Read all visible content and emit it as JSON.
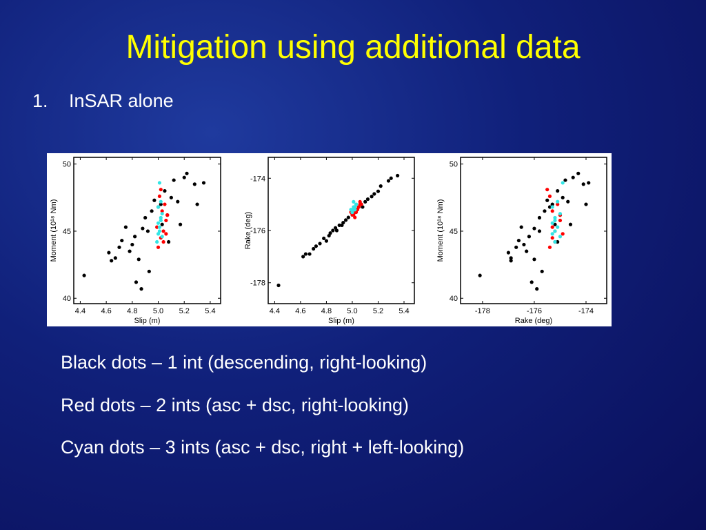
{
  "slide": {
    "title": "Mitigation using additional data",
    "list": [
      {
        "number": "1.",
        "text": "InSAR alone"
      }
    ],
    "notes": [
      "Black dots – 1 int (descending, right-looking)",
      "Red dots – 2 ints (asc + dsc, right-looking)",
      "Cyan dots – 3 ints (asc + dsc, right + left-looking)"
    ]
  },
  "chart_data": [
    {
      "type": "scatter",
      "xlabel": "Slip (m)",
      "ylabel": "Moment (10¹⁸ Nm)",
      "xlim": [
        4.35,
        5.48
      ],
      "ylim": [
        39.6,
        50.5
      ],
      "xticks": [
        4.4,
        4.6,
        4.8,
        {
          "value": 5,
          "label": "5.0"
        },
        5.2,
        5.4
      ],
      "yticks": [
        40,
        45,
        50
      ],
      "series": [
        {
          "color": "#000000",
          "x": [
            4.43,
            4.62,
            4.64,
            4.67,
            4.7,
            4.72,
            4.75,
            4.78,
            4.8,
            4.82,
            4.85,
            4.88,
            4.9,
            4.92,
            4.95,
            4.97,
            5.0,
            5.02,
            5.05,
            5.07,
            5.1,
            5.12,
            5.15,
            5.17,
            5.2,
            5.22,
            5.28,
            5.3,
            5.35,
            4.83,
            4.87,
            4.93,
            5.03,
            5.08
          ],
          "values": [
            41.7,
            43.4,
            42.8,
            43.0,
            43.8,
            44.3,
            45.3,
            43.5,
            44.0,
            44.6,
            42.9,
            45.2,
            46.0,
            45.0,
            46.5,
            47.3,
            46.8,
            47.0,
            48.0,
            46.2,
            47.5,
            48.8,
            47.2,
            45.5,
            49.0,
            49.3,
            48.5,
            47.0,
            48.6,
            41.2,
            40.7,
            42.0,
            45.5,
            44.2
          ]
        },
        {
          "color": "#ff0000",
          "x": [
            5.0,
            5.02,
            5.04,
            5.06,
            5.03,
            5.05,
            5.01,
            5.07,
            5.04,
            5.02,
            4.99,
            5.06
          ],
          "values": [
            43.8,
            44.5,
            45.0,
            45.8,
            46.5,
            47.0,
            47.6,
            46.2,
            44.2,
            48.1,
            45.3,
            44.8
          ]
        },
        {
          "color": "#33e5e5",
          "x": [
            4.99,
            5.0,
            5.01,
            5.02,
            5.03,
            5.0,
            5.02,
            5.01,
            5.03,
            5.0,
            5.02,
            5.01
          ],
          "values": [
            44.2,
            44.8,
            45.3,
            45.8,
            46.3,
            46.8,
            47.2,
            45.0,
            44.6,
            45.6,
            46.0,
            48.6
          ]
        }
      ]
    },
    {
      "type": "scatter",
      "xlabel": "Slip (m)",
      "ylabel": "Rake (deg)",
      "xlim": [
        4.35,
        5.48
      ],
      "ylim": [
        -178.8,
        -173.2
      ],
      "xticks": [
        4.4,
        4.6,
        4.8,
        {
          "value": 5,
          "label": "5.0"
        },
        5.2,
        5.4
      ],
      "yticks": [
        -174,
        -176,
        -178
      ],
      "series": [
        {
          "color": "#000000",
          "x": [
            4.43,
            4.62,
            4.64,
            4.67,
            4.7,
            4.72,
            4.75,
            4.78,
            4.8,
            4.82,
            4.85,
            4.88,
            4.9,
            4.92,
            4.95,
            4.97,
            5.0,
            5.02,
            5.05,
            5.07,
            5.1,
            5.12,
            5.15,
            5.17,
            5.2,
            5.22,
            5.28,
            5.3,
            5.35,
            4.83,
            4.87,
            4.93,
            5.03,
            5.08
          ],
          "values": [
            -178.1,
            -177.0,
            -176.9,
            -176.9,
            -176.7,
            -176.6,
            -176.5,
            -176.3,
            -176.4,
            -176.2,
            -176.0,
            -176.0,
            -175.8,
            -175.8,
            -175.6,
            -175.5,
            -175.4,
            -175.3,
            -175.1,
            -175.0,
            -174.9,
            -174.8,
            -174.7,
            -174.6,
            -174.5,
            -174.3,
            -174.1,
            -174.0,
            -173.9,
            -176.1,
            -175.9,
            -175.7,
            -175.2,
            -175.1
          ]
        },
        {
          "color": "#ff0000",
          "x": [
            5.0,
            5.02,
            5.04,
            5.06,
            5.03,
            5.05,
            5.01,
            5.07,
            5.04,
            5.02,
            4.99,
            5.06
          ],
          "values": [
            -175.4,
            -175.3,
            -175.2,
            -175.0,
            -175.3,
            -175.1,
            -175.4,
            -175.0,
            -175.2,
            -175.5,
            -175.3,
            -174.9
          ]
        },
        {
          "color": "#33e5e5",
          "x": [
            4.99,
            5.0,
            5.01,
            5.02,
            5.03,
            5.0,
            5.02,
            5.01,
            5.03,
            5.0,
            5.02,
            5.01
          ],
          "values": [
            -175.2,
            -175.3,
            -175.1,
            -175.2,
            -175.0,
            -175.3,
            -175.1,
            -175.2,
            -175.0,
            -175.3,
            -175.2,
            -174.9
          ]
        }
      ]
    },
    {
      "type": "scatter",
      "xlabel": "Rake (deg)",
      "ylabel": "Moment (10¹⁸ Nm)",
      "xlim": [
        -178.85,
        -173.2
      ],
      "ylim": [
        39.6,
        50.5
      ],
      "xticks": [
        -178,
        -176,
        -174
      ],
      "yticks": [
        40,
        45,
        50
      ],
      "series": [
        {
          "color": "#000000",
          "x": [
            -178.1,
            -177.0,
            -176.9,
            -176.9,
            -176.7,
            -176.6,
            -176.5,
            -176.3,
            -176.4,
            -176.2,
            -176.0,
            -176.0,
            -175.8,
            -175.8,
            -175.6,
            -175.5,
            -175.4,
            -175.3,
            -175.1,
            -175.0,
            -174.9,
            -174.8,
            -174.7,
            -174.6,
            -174.5,
            -174.3,
            -174.1,
            -174.0,
            -173.9,
            -176.1,
            -175.9,
            -175.7,
            -175.2,
            -175.1
          ],
          "values": [
            41.7,
            43.4,
            42.8,
            43.0,
            43.8,
            44.3,
            45.3,
            43.5,
            44.0,
            44.6,
            42.9,
            45.2,
            46.0,
            45.0,
            46.5,
            47.3,
            46.8,
            47.0,
            48.0,
            46.2,
            47.5,
            48.8,
            47.2,
            45.5,
            49.0,
            49.3,
            48.5,
            47.0,
            48.6,
            41.2,
            40.7,
            42.0,
            45.5,
            44.2
          ]
        },
        {
          "color": "#ff0000",
          "x": [
            -175.4,
            -175.3,
            -175.2,
            -175.0,
            -175.3,
            -175.1,
            -175.4,
            -175.0,
            -175.2,
            -175.5,
            -175.3,
            -174.9
          ],
          "values": [
            43.8,
            44.5,
            45.0,
            45.8,
            46.5,
            47.0,
            47.6,
            46.2,
            44.2,
            48.1,
            45.3,
            44.8
          ]
        },
        {
          "color": "#33e5e5",
          "x": [
            -175.2,
            -175.3,
            -175.1,
            -175.2,
            -175.0,
            -175.3,
            -175.1,
            -175.2,
            -175.0,
            -175.3,
            -175.2,
            -174.9
          ],
          "values": [
            44.2,
            44.8,
            45.3,
            45.8,
            46.3,
            46.8,
            47.2,
            45.0,
            44.6,
            45.6,
            46.0,
            48.6
          ]
        }
      ]
    }
  ]
}
